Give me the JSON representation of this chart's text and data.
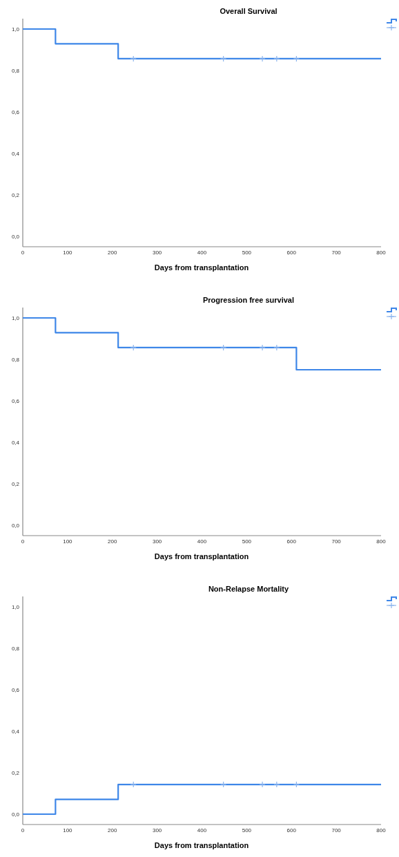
{
  "chart_data": [
    {
      "type": "step",
      "title": "Overall Survival",
      "xlabel": "Days from transplantation",
      "xlim": [
        0,
        800
      ],
      "xticks": [
        0,
        100,
        200,
        300,
        400,
        500,
        600,
        700,
        800
      ],
      "ylim": [
        -0.05,
        1.05
      ],
      "yticks": [
        {
          "value": 0,
          "label": "0,0"
        },
        {
          "value": 0.2,
          "label": "0,2"
        },
        {
          "value": 0.4,
          "label": "0,4"
        },
        {
          "value": 0.6,
          "label": "0,6"
        },
        {
          "value": 0.8,
          "label": "0,8"
        },
        {
          "value": 1,
          "label": "1,0"
        }
      ],
      "grid": false,
      "series": [
        {
          "color": "#3d86e8",
          "x": [
            0,
            73,
            213,
            800
          ],
          "values": [
            1,
            0.929,
            0.857,
            0.857
          ]
        },
        {
          "type": "scatter",
          "marker": "cross",
          "color": "#8ab4ee",
          "x": [
            247,
            448,
            535,
            567,
            611
          ],
          "values": [
            0.857,
            0.857,
            0.857,
            0.857,
            0.857
          ]
        }
      ]
    },
    {
      "type": "step",
      "title": "Progression free survival",
      "xlabel": "Days from transplantation",
      "xlim": [
        0,
        800
      ],
      "xticks": [
        0,
        100,
        200,
        300,
        400,
        500,
        600,
        700,
        800
      ],
      "ylim": [
        -0.05,
        1.05
      ],
      "yticks": [
        {
          "value": 0,
          "label": "0,0"
        },
        {
          "value": 0.2,
          "label": "0,2"
        },
        {
          "value": 0.4,
          "label": "0,4"
        },
        {
          "value": 0.6,
          "label": "0,6"
        },
        {
          "value": 0.8,
          "label": "0,8"
        },
        {
          "value": 1,
          "label": "1,0"
        }
      ],
      "grid": false,
      "series": [
        {
          "color": "#3d86e8",
          "x": [
            0,
            73,
            213,
            611,
            800
          ],
          "values": [
            1,
            0.929,
            0.857,
            0.75,
            0.75
          ]
        },
        {
          "type": "scatter",
          "marker": "cross",
          "color": "#8ab4ee",
          "x": [
            247,
            448,
            535,
            567
          ],
          "values": [
            0.857,
            0.857,
            0.857,
            0.857
          ]
        }
      ]
    },
    {
      "type": "step",
      "title": "Non-Relapse Mortality",
      "xlabel": "Days from transplantation",
      "xlim": [
        0,
        800
      ],
      "xticks": [
        0,
        100,
        200,
        300,
        400,
        500,
        600,
        700,
        800
      ],
      "ylim": [
        -0.05,
        1.05
      ],
      "yticks": [
        {
          "value": 0,
          "label": "0,0"
        },
        {
          "value": 0.2,
          "label": "0,2"
        },
        {
          "value": 0.4,
          "label": "0,4"
        },
        {
          "value": 0.6,
          "label": "0,6"
        },
        {
          "value": 0.8,
          "label": "0,8"
        },
        {
          "value": 1,
          "label": "1,0"
        }
      ],
      "grid": false,
      "series": [
        {
          "color": "#3d86e8",
          "x": [
            0,
            73,
            213,
            800
          ],
          "values": [
            0,
            0.071,
            0.143,
            0.143
          ]
        },
        {
          "type": "scatter",
          "marker": "cross",
          "color": "#8ab4ee",
          "x": [
            247,
            448,
            535,
            567,
            611
          ],
          "values": [
            0.143,
            0.143,
            0.143,
            0.143,
            0.143
          ]
        }
      ]
    }
  ]
}
